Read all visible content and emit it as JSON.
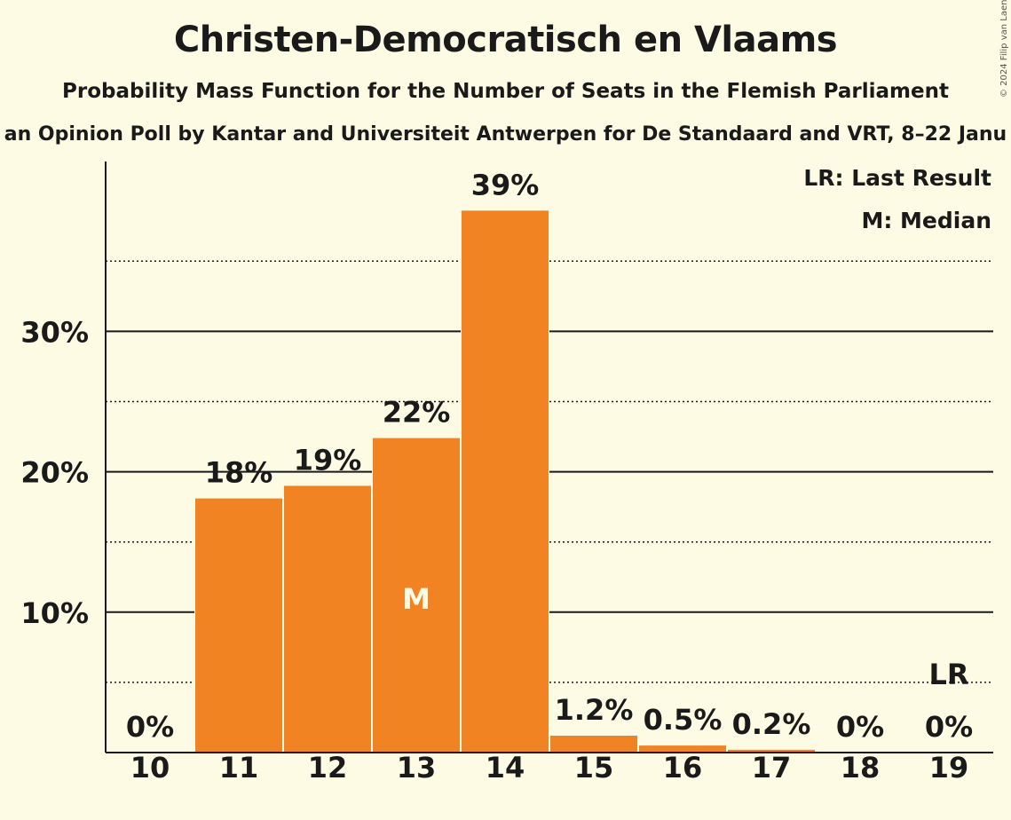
{
  "title": "Christen-Democratisch en Vlaams",
  "subtitle": "Probability Mass Function for the Number of Seats in the Flemish Parliament",
  "source": "an Opinion Poll by Kantar and Universiteit Antwerpen for De Standaard and VRT, 8–22 Janu",
  "copyright": "© 2024 Filip van Laenen",
  "legend": {
    "last_result": "LR: Last Result",
    "median": "M: Median"
  },
  "colors": {
    "bar": "#f28322",
    "background": "#fefbe5",
    "text": "#1a1a1a"
  },
  "chart_data": {
    "type": "bar",
    "categories": [
      "10",
      "11",
      "12",
      "13",
      "14",
      "15",
      "16",
      "17",
      "18",
      "19"
    ],
    "values": [
      0,
      18.1,
      19.0,
      22.4,
      38.6,
      1.2,
      0.5,
      0.2,
      0,
      0
    ],
    "data_labels": [
      "0%",
      "18%",
      "19%",
      "22%",
      "39%",
      "1.2%",
      "0.5%",
      "0.2%",
      "0%",
      "0%"
    ],
    "y_ticks": [
      {
        "value": 10,
        "label": "10%"
      },
      {
        "value": 20,
        "label": "20%"
      },
      {
        "value": 30,
        "label": "30%"
      }
    ],
    "minor_gridlines": [
      5,
      15,
      25,
      35
    ],
    "ylim": [
      0,
      42
    ],
    "median": {
      "category": "13",
      "label": "M"
    },
    "last_result": {
      "category": "19",
      "label": "LR"
    },
    "legend_position": "top-right"
  }
}
